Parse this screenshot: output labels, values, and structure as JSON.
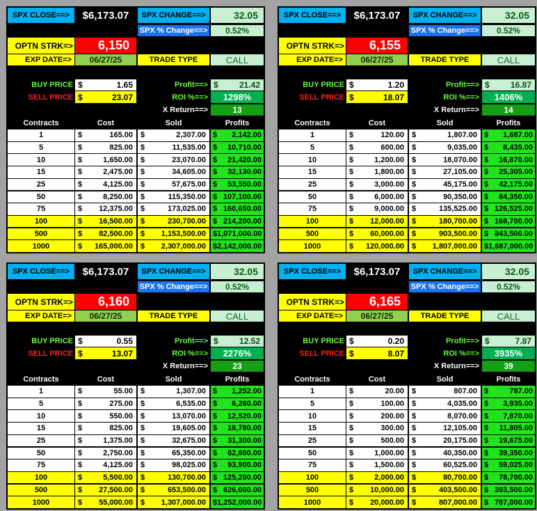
{
  "labels": {
    "spx_close": "SPX CLOSE==>",
    "spx_change": "SPX CHANGE==>",
    "spx_pct_change": "SPX % Change==>",
    "optn_strk": "OPTN STRK=>",
    "exp_date": "EXP DATE=>",
    "trade_type": "TRADE TYPE",
    "buy_price": "BUY PRICE",
    "sell_price": "SELL PRICE",
    "profit": "Profit==>",
    "roi": "ROI %==>",
    "x_return": "X Return==>",
    "dollar": "$",
    "columns": [
      "Contracts",
      "Cost",
      "Sold",
      "Profits"
    ]
  },
  "colors": {
    "background": "#a3a3a3",
    "cyan_label": "#00b0f0",
    "blue_label": "#1a73f0",
    "strike": "#ff0000",
    "exp_date": "#92d050",
    "highlight_yellow": "#ffff00",
    "roi": "#00b050",
    "x_return": "#14a014",
    "profits": "#22e41c",
    "buy_label": "#66ff33",
    "sell_label": "#ff2020"
  },
  "panels": [
    {
      "spx_close": "$6,173.07",
      "spx_change": "32.05",
      "spx_pct_change": "0.52%",
      "strike": "6,150",
      "exp_date": "06/27/25",
      "trade_type": "CALL",
      "buy_price": "1.65",
      "sell_price": "23.07",
      "profit": "21.42",
      "roi": "1298%",
      "x_return": "13",
      "rows": [
        {
          "contracts": "1",
          "cost": "165.00",
          "sold": "2,307.00",
          "profit": "2,142.00"
        },
        {
          "contracts": "5",
          "cost": "825.00",
          "sold": "11,535.00",
          "profit": "10,710.00"
        },
        {
          "contracts": "10",
          "cost": "1,650.00",
          "sold": "23,070.00",
          "profit": "21,420.00"
        },
        {
          "contracts": "15",
          "cost": "2,475.00",
          "sold": "34,605.00",
          "profit": "32,130.00"
        },
        {
          "contracts": "25",
          "cost": "4,125.00",
          "sold": "57,675.00",
          "profit": "53,550.00"
        },
        {
          "contracts": "50",
          "cost": "8,250.00",
          "sold": "115,350.00",
          "profit": "107,100.00"
        },
        {
          "contracts": "75",
          "cost": "12,375.00",
          "sold": "173,025.00",
          "profit": "160,650.00"
        },
        {
          "contracts": "100",
          "cost": "16,500.00",
          "sold": "230,700.00",
          "profit": "214,200.00"
        },
        {
          "contracts": "500",
          "cost": "82,500.00",
          "sold": "1,153,500.00",
          "profit": "1,071,000.00"
        },
        {
          "contracts": "1000",
          "cost": "165,000.00",
          "sold": "2,307,000.00",
          "profit": "2,142,000.00"
        }
      ]
    },
    {
      "spx_close": "$6,173.07",
      "spx_change": "32.05",
      "spx_pct_change": "0.52%",
      "strike": "6,155",
      "exp_date": "06/27/25",
      "trade_type": "CALL",
      "buy_price": "1.20",
      "sell_price": "18.07",
      "profit": "16.87",
      "roi": "1406%",
      "x_return": "14",
      "rows": [
        {
          "contracts": "1",
          "cost": "120.00",
          "sold": "1,807.00",
          "profit": "1,687.00"
        },
        {
          "contracts": "5",
          "cost": "600.00",
          "sold": "9,035.00",
          "profit": "8,435.00"
        },
        {
          "contracts": "10",
          "cost": "1,200.00",
          "sold": "18,070.00",
          "profit": "16,870.00"
        },
        {
          "contracts": "15",
          "cost": "1,800.00",
          "sold": "27,105.00",
          "profit": "25,305.00"
        },
        {
          "contracts": "25",
          "cost": "3,000.00",
          "sold": "45,175.00",
          "profit": "42,175.00"
        },
        {
          "contracts": "50",
          "cost": "6,000.00",
          "sold": "90,350.00",
          "profit": "84,350.00"
        },
        {
          "contracts": "75",
          "cost": "9,000.00",
          "sold": "135,525.00",
          "profit": "126,525.00"
        },
        {
          "contracts": "100",
          "cost": "12,000.00",
          "sold": "180,700.00",
          "profit": "168,700.00"
        },
        {
          "contracts": "500",
          "cost": "60,000.00",
          "sold": "903,500.00",
          "profit": "843,500.00"
        },
        {
          "contracts": "1000",
          "cost": "120,000.00",
          "sold": "1,807,000.00",
          "profit": "1,687,000.00"
        }
      ]
    },
    {
      "spx_close": "$6,173.07",
      "spx_change": "32.05",
      "spx_pct_change": "0.52%",
      "strike": "6,160",
      "exp_date": "06/27/25",
      "trade_type": "CALL",
      "buy_price": "0.55",
      "sell_price": "13.07",
      "profit": "12.52",
      "roi": "2276%",
      "x_return": "23",
      "rows": [
        {
          "contracts": "1",
          "cost": "55.00",
          "sold": "1,307.00",
          "profit": "1,252.00"
        },
        {
          "contracts": "5",
          "cost": "275.00",
          "sold": "6,535.00",
          "profit": "6,260.00"
        },
        {
          "contracts": "10",
          "cost": "550.00",
          "sold": "13,070.00",
          "profit": "12,520.00"
        },
        {
          "contracts": "15",
          "cost": "825.00",
          "sold": "19,605.00",
          "profit": "18,780.00"
        },
        {
          "contracts": "25",
          "cost": "1,375.00",
          "sold": "32,675.00",
          "profit": "31,300.00"
        },
        {
          "contracts": "50",
          "cost": "2,750.00",
          "sold": "65,350.00",
          "profit": "62,600.00"
        },
        {
          "contracts": "75",
          "cost": "4,125.00",
          "sold": "98,025.00",
          "profit": "93,900.00"
        },
        {
          "contracts": "100",
          "cost": "5,500.00",
          "sold": "130,700.00",
          "profit": "125,200.00"
        },
        {
          "contracts": "500",
          "cost": "27,500.00",
          "sold": "653,500.00",
          "profit": "626,000.00"
        },
        {
          "contracts": "1000",
          "cost": "55,000.00",
          "sold": "1,307,000.00",
          "profit": "1,252,000.00"
        }
      ]
    },
    {
      "spx_close": "$6,173.07",
      "spx_change": "32.05",
      "spx_pct_change": "0.52%",
      "strike": "6,165",
      "exp_date": "06/27/25",
      "trade_type": "CALL",
      "buy_price": "0.20",
      "sell_price": "8.07",
      "profit": "7.87",
      "roi": "3935%",
      "x_return": "39",
      "rows": [
        {
          "contracts": "1",
          "cost": "20.00",
          "sold": "807.00",
          "profit": "787.00"
        },
        {
          "contracts": "5",
          "cost": "100.00",
          "sold": "4,035.00",
          "profit": "3,935.00"
        },
        {
          "contracts": "10",
          "cost": "200.00",
          "sold": "8,070.00",
          "profit": "7,870.00"
        },
        {
          "contracts": "15",
          "cost": "300.00",
          "sold": "12,105.00",
          "profit": "11,805.00"
        },
        {
          "contracts": "25",
          "cost": "500.00",
          "sold": "20,175.00",
          "profit": "19,675.00"
        },
        {
          "contracts": "50",
          "cost": "1,000.00",
          "sold": "40,350.00",
          "profit": "39,350.00"
        },
        {
          "contracts": "75",
          "cost": "1,500.00",
          "sold": "60,525.00",
          "profit": "59,025.00"
        },
        {
          "contracts": "100",
          "cost": "2,000.00",
          "sold": "80,700.00",
          "profit": "78,700.00"
        },
        {
          "contracts": "500",
          "cost": "10,000.00",
          "sold": "403,500.00",
          "profit": "393,500.00"
        },
        {
          "contracts": "1000",
          "cost": "20,000.00",
          "sold": "807,000.00",
          "profit": "787,000.00"
        }
      ]
    }
  ]
}
